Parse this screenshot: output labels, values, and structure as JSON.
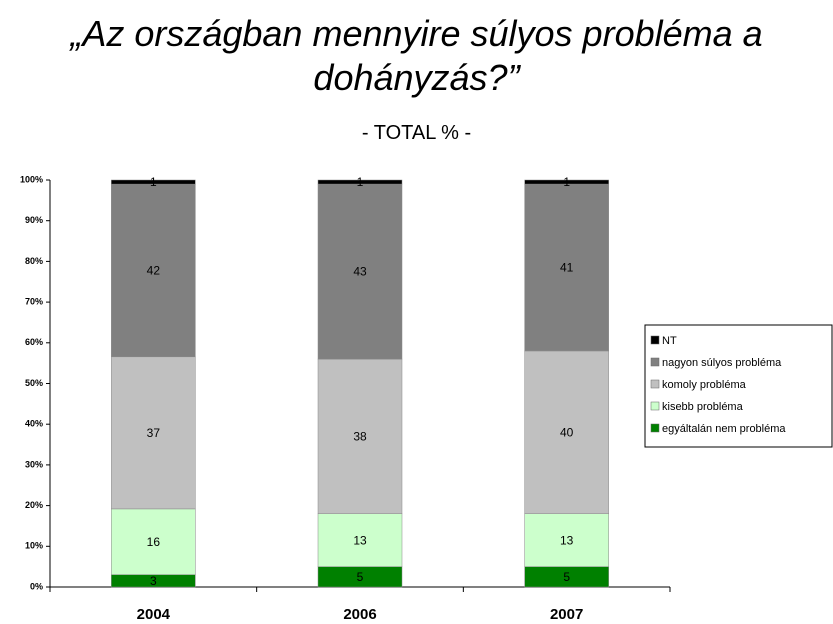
{
  "chart_data": {
    "type": "bar",
    "stack": "percent",
    "title": "„Az országban mennyire súlyos probléma a dohányzás?”",
    "subtitle": "- TOTAL % -",
    "categories": [
      "2004",
      "2006",
      "2007"
    ],
    "series": [
      {
        "name": "egyáltalán nem probléma",
        "color": "#008000",
        "values": [
          3,
          5,
          5
        ]
      },
      {
        "name": "kisebb probléma",
        "color": "#ccffcc",
        "values": [
          16,
          13,
          13
        ]
      },
      {
        "name": "komoly probléma",
        "color": "#c0c0c0",
        "values": [
          37,
          38,
          40
        ]
      },
      {
        "name": "nagyon súlyos probléma",
        "color": "#808080",
        "values": [
          42,
          43,
          41
        ]
      },
      {
        "name": "NT",
        "color": "#000000",
        "values": [
          1,
          1,
          1
        ]
      }
    ],
    "ylim": [
      0,
      100
    ],
    "yticks": [
      {
        "value": 0,
        "label": "0%"
      },
      {
        "value": 10,
        "label": "10%"
      },
      {
        "value": 20,
        "label": "20%"
      },
      {
        "value": 30,
        "label": "30%"
      },
      {
        "value": 40,
        "label": "40%"
      },
      {
        "value": 50,
        "label": "50%"
      },
      {
        "value": 60,
        "label": "60%"
      },
      {
        "value": 70,
        "label": "70%"
      },
      {
        "value": 80,
        "label": "80%"
      },
      {
        "value": 90,
        "label": "90%"
      },
      {
        "value": 100,
        "label": "100%"
      }
    ],
    "grid": false,
    "legend": "right"
  }
}
